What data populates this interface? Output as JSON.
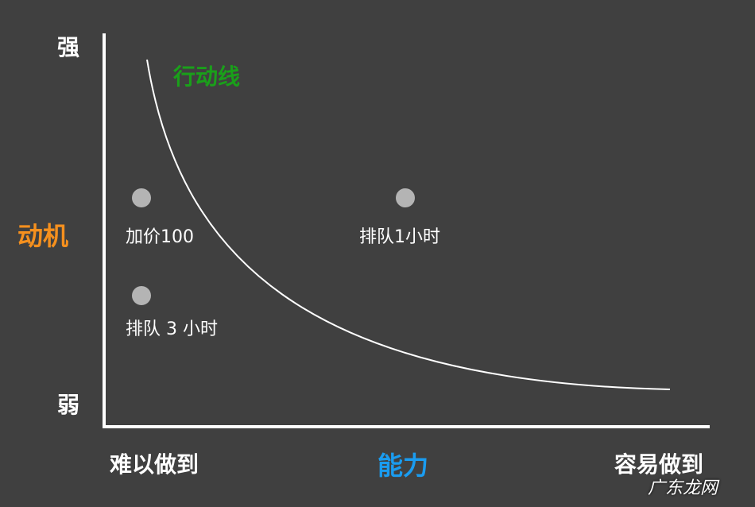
{
  "colors": {
    "background": "#404040",
    "axis": "#ffffff",
    "curve": "#ffffff",
    "action_line_label": "#1aa01a",
    "motivation_label": "#f5901e",
    "ability_label": "#1a9cf0",
    "point": "#b4b4b4"
  },
  "y_axis": {
    "label": "动机",
    "top": "强",
    "bottom": "弱"
  },
  "x_axis": {
    "label": "能力",
    "left": "难以做到",
    "right": "容易做到"
  },
  "curve_label": "行动线",
  "points": [
    {
      "label": "加价100"
    },
    {
      "label": "排队1小时"
    },
    {
      "label": "排队 3 小时"
    }
  ],
  "watermark": "广东龙网"
}
